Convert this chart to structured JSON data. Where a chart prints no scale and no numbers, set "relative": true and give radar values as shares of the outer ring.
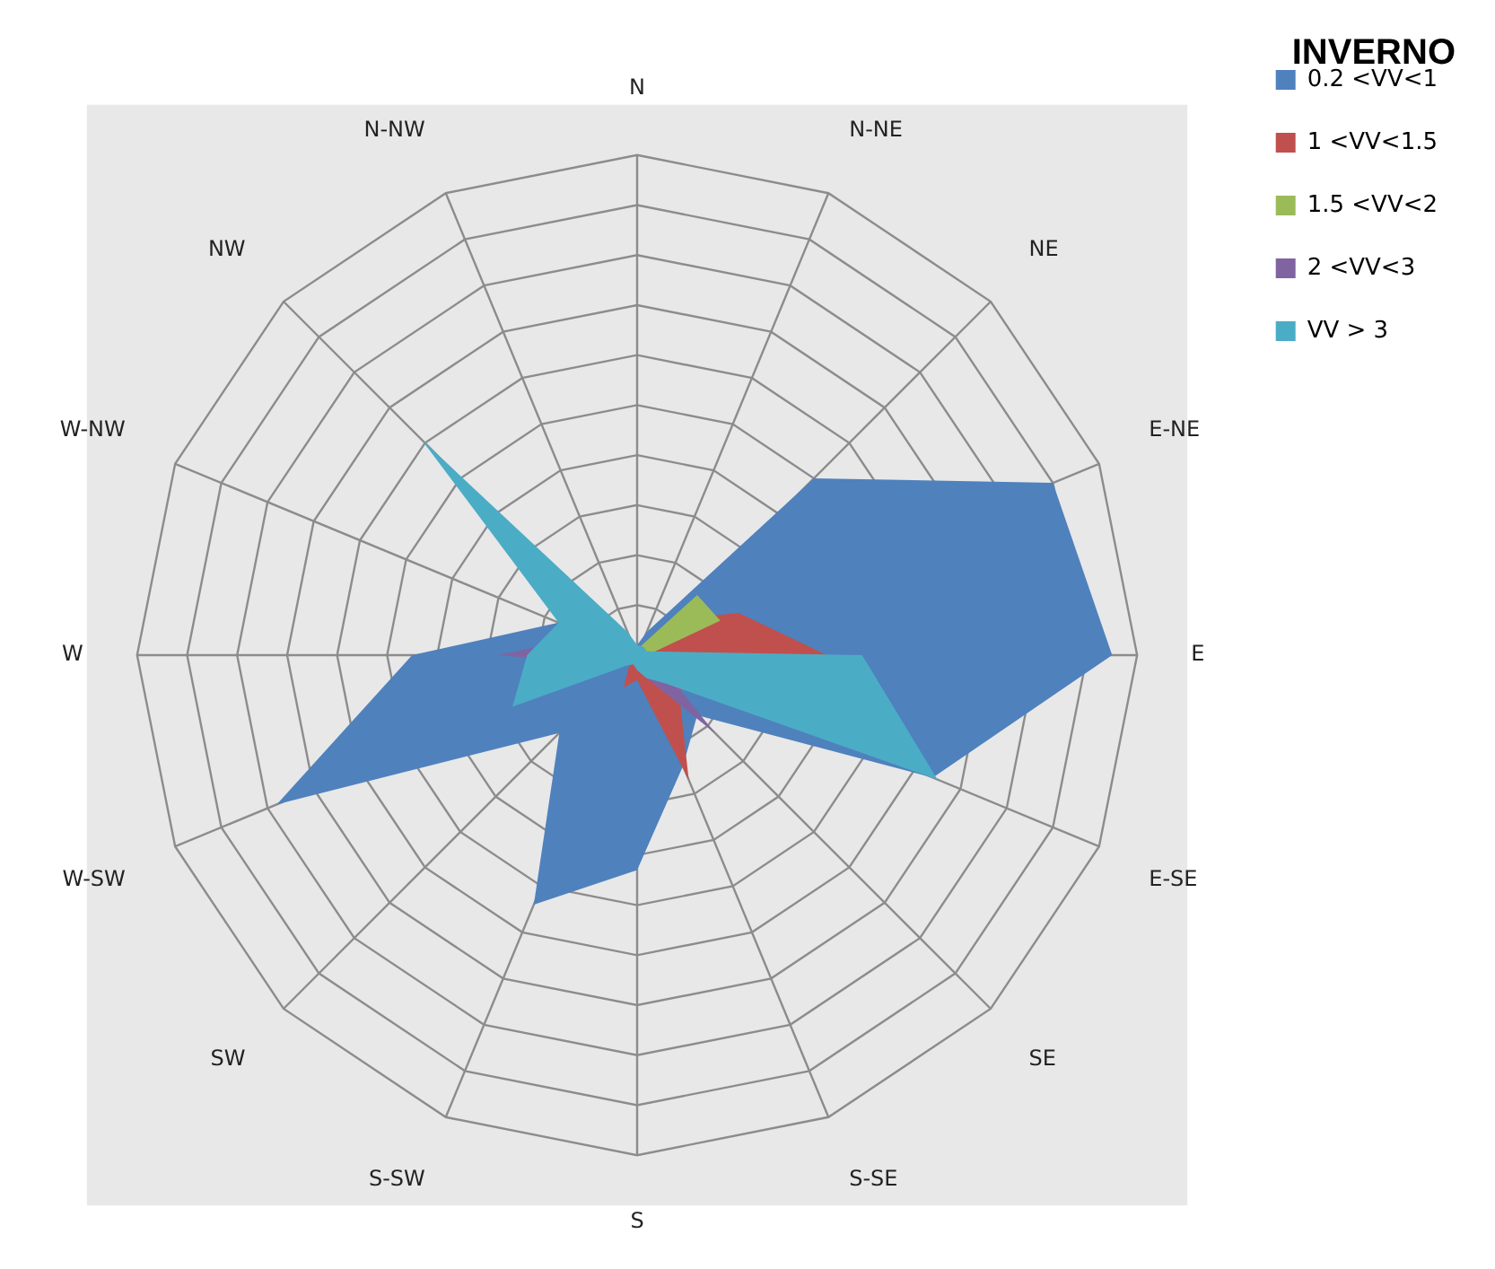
{
  "chart_data": {
    "type": "radar",
    "title": "INVERNO",
    "relative": true,
    "legend": "right",
    "grid": true,
    "marker": "none",
    "categories": [
      "N",
      "N-NE",
      "NE",
      "E-NE",
      "E",
      "E-SE",
      "SE",
      "S-SE",
      "S",
      "S-SW",
      "SW",
      "W-SW",
      "W",
      "W-NW",
      "NW",
      "N-NW"
    ],
    "series": [
      {
        "name": "0.2 <VV<1",
        "color": "#4f81bd",
        "values": [
          0.02,
          0.05,
          0.5,
          0.9,
          0.95,
          0.64,
          0.17,
          0.24,
          0.43,
          0.54,
          0.22,
          0.78,
          0.45,
          0.17,
          0.03,
          0.02
        ]
      },
      {
        "name": "1 <VV<1.5",
        "color": "#c0504d",
        "values": [
          0.02,
          0.02,
          0.1,
          0.22,
          0.38,
          0.1,
          0.12,
          0.27,
          0.05,
          0.07,
          0.02,
          0.02,
          0.02,
          0.02,
          0.02,
          0.02
        ]
      },
      {
        "name": "1.5 <VV<2",
        "color": "#9bbb59",
        "values": [
          0.02,
          0.02,
          0.17,
          0.18,
          0.02,
          0.02,
          0.02,
          0.02,
          0.02,
          0.02,
          0.02,
          0.02,
          0.02,
          0.02,
          0.02,
          0.02
        ]
      },
      {
        "name": "2 <VV<3",
        "color": "#8064a2",
        "values": [
          0.02,
          0.02,
          0.02,
          0.02,
          0.02,
          0.05,
          0.22,
          0.05,
          0.02,
          0.02,
          0.02,
          0.05,
          0.28,
          0.1,
          0.02,
          0.02
        ]
      },
      {
        "name": "VV > 3",
        "color": "#4bacc6",
        "values": [
          0.02,
          0.02,
          0.02,
          0.02,
          0.45,
          0.65,
          0.08,
          0.05,
          0.03,
          0.02,
          0.03,
          0.27,
          0.22,
          0.17,
          0.61,
          0.05
        ]
      }
    ]
  }
}
